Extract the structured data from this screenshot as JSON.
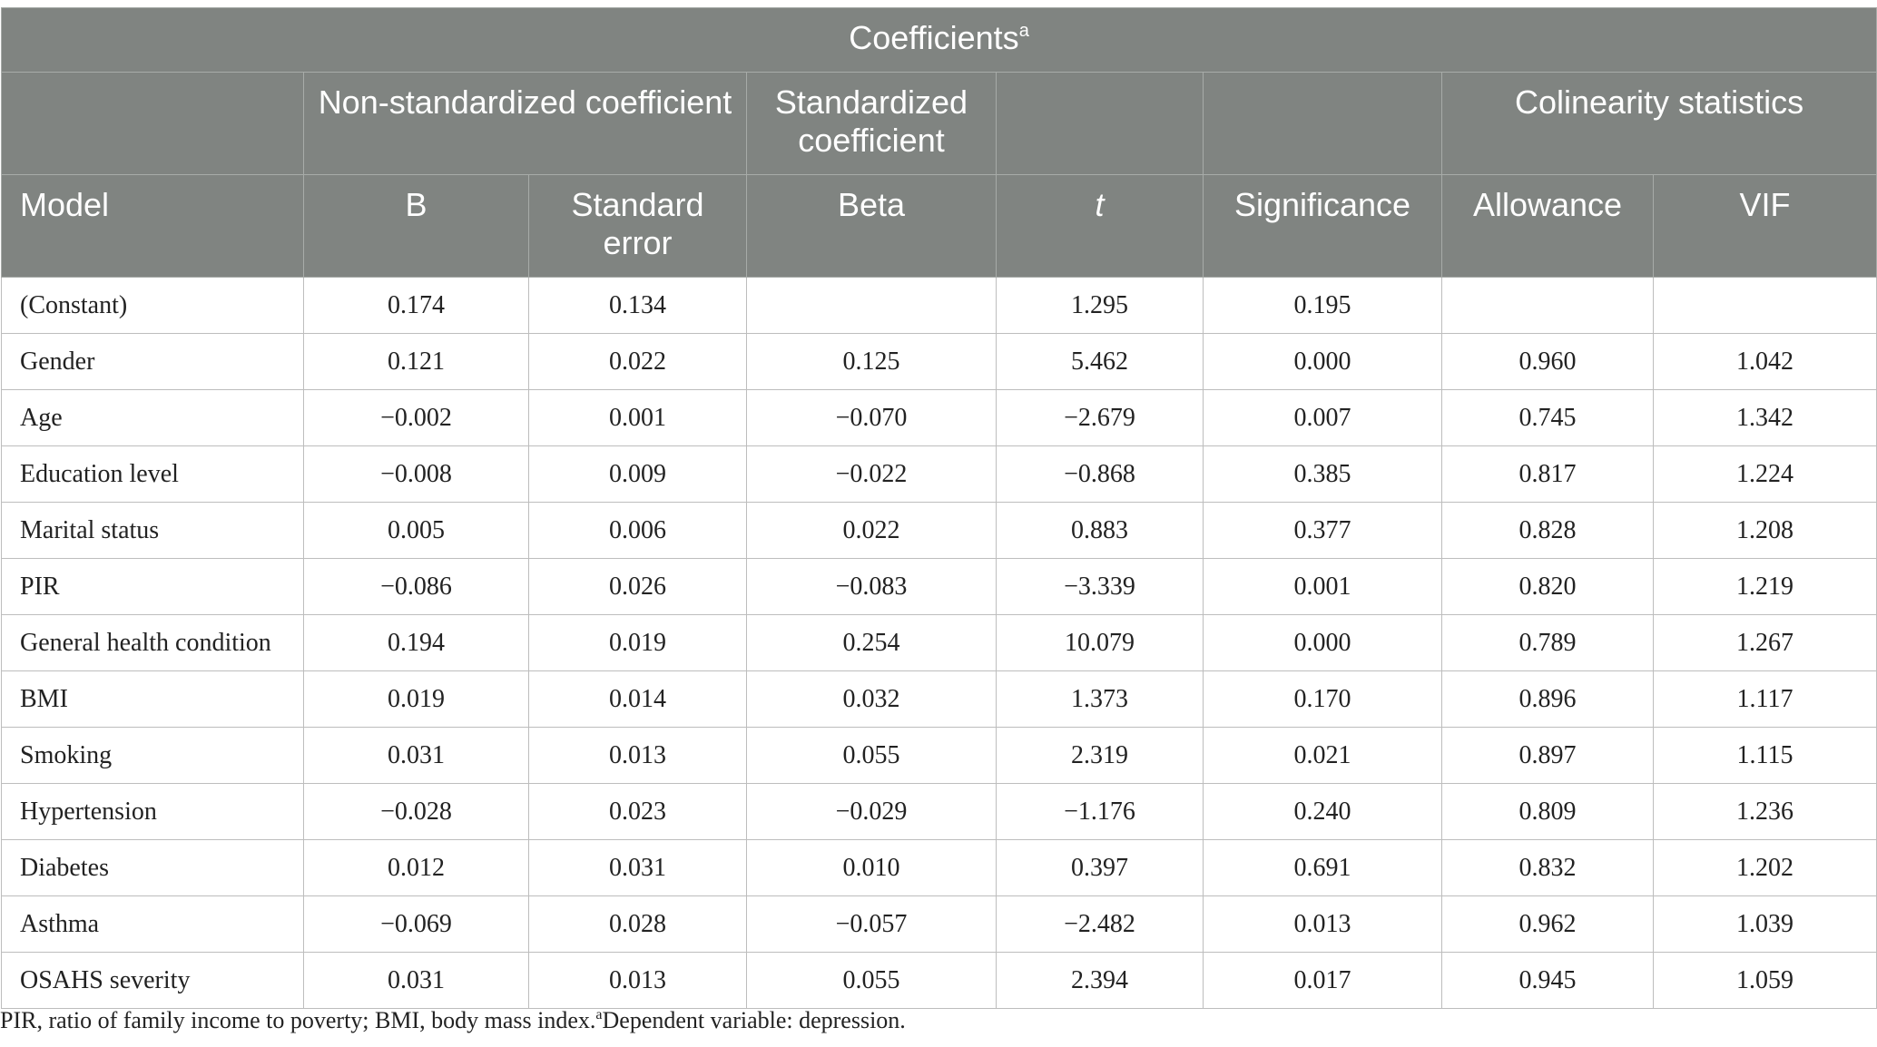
{
  "table": {
    "title": "Coefficients",
    "title_superscript": "a",
    "group_headers": {
      "non_standardized": "Non-standardized coefficient",
      "standardized": "Standardized coefficient",
      "collinearity": "Colinearity statistics"
    },
    "columns": [
      "Model",
      "B",
      "Standard error",
      "Beta",
      "t",
      "Significance",
      "Allowance",
      "VIF"
    ],
    "rows": [
      [
        "(Constant)",
        "0.174",
        "0.134",
        "",
        "1.295",
        "0.195",
        "",
        ""
      ],
      [
        "Gender",
        "0.121",
        "0.022",
        "0.125",
        "5.462",
        "0.000",
        "0.960",
        "1.042"
      ],
      [
        "Age",
        "−0.002",
        "0.001",
        "−0.070",
        "−2.679",
        "0.007",
        "0.745",
        "1.342"
      ],
      [
        "Education level",
        "−0.008",
        "0.009",
        "−0.022",
        "−0.868",
        "0.385",
        "0.817",
        "1.224"
      ],
      [
        "Marital status",
        "0.005",
        "0.006",
        "0.022",
        "0.883",
        "0.377",
        "0.828",
        "1.208"
      ],
      [
        "PIR",
        "−0.086",
        "0.026",
        "−0.083",
        "−3.339",
        "0.001",
        "0.820",
        "1.219"
      ],
      [
        "General health condition",
        "0.194",
        "0.019",
        "0.254",
        "10.079",
        "0.000",
        "0.789",
        "1.267"
      ],
      [
        "BMI",
        "0.019",
        "0.014",
        "0.032",
        "1.373",
        "0.170",
        "0.896",
        "1.117"
      ],
      [
        "Smoking",
        "0.031",
        "0.013",
        "0.055",
        "2.319",
        "0.021",
        "0.897",
        "1.115"
      ],
      [
        "Hypertension",
        "−0.028",
        "0.023",
        "−0.029",
        "−1.176",
        "0.240",
        "0.809",
        "1.236"
      ],
      [
        "Diabetes",
        "0.012",
        "0.031",
        "0.010",
        "0.397",
        "0.691",
        "0.832",
        "1.202"
      ],
      [
        "Asthma",
        "−0.069",
        "0.028",
        "−0.057",
        "−2.482",
        "0.013",
        "0.962",
        "1.039"
      ],
      [
        "OSAHS severity",
        "0.031",
        "0.013",
        "0.055",
        "2.394",
        "0.017",
        "0.945",
        "1.059"
      ]
    ]
  },
  "footnote": {
    "text": "PIR, ratio of family income to poverty; BMI, body mass index.",
    "superscript": "a",
    "dependent": "Dependent variable: depression."
  }
}
